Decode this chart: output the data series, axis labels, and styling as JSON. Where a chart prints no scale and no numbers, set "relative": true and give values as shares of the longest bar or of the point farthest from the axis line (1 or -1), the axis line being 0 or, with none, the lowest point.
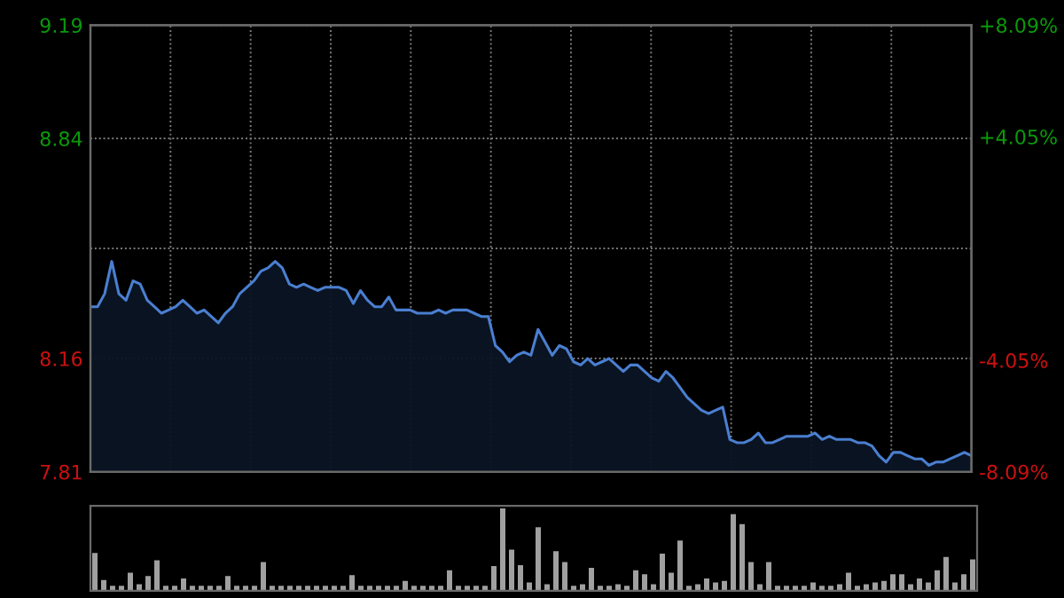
{
  "chart_data": [
    {
      "type": "area",
      "grid": true,
      "tick_labels": "y",
      "categories": [
        null,
        null,
        null,
        null,
        null,
        null,
        null,
        null,
        null,
        null,
        null,
        null,
        null,
        null,
        null,
        null,
        null,
        null,
        null,
        null,
        null,
        null,
        null,
        null,
        null,
        null,
        null,
        null,
        null,
        null,
        null,
        null,
        null,
        null,
        null,
        null,
        null,
        null,
        null,
        null,
        null,
        null,
        null,
        null,
        null,
        null,
        null,
        null,
        null,
        null,
        null,
        null,
        null,
        null,
        null,
        null,
        null,
        null,
        null,
        null,
        null,
        null,
        null,
        null,
        null,
        null,
        null,
        null,
        null,
        null,
        null,
        null,
        null,
        null,
        null,
        null,
        null,
        null,
        null,
        null,
        null,
        null,
        null,
        null,
        null,
        null,
        null,
        null,
        null,
        null,
        null,
        null,
        null,
        null,
        null,
        null,
        null,
        null,
        null,
        null,
        null,
        null,
        null,
        null,
        null,
        null,
        null,
        null,
        null,
        null,
        null,
        null,
        null,
        null,
        null,
        null,
        null,
        null,
        null,
        null,
        null,
        null,
        null,
        null,
        null
      ],
      "ylim": [
        7.81,
        9.19
      ],
      "yticks": [
        7.81,
        8.16,
        {
          "value": 8.5,
          "label": null
        },
        8.84,
        9.19
      ],
      "y2lim": [
        -8.09,
        8.09
      ],
      "y2ticks": [
        {
          "value": -8.09,
          "label": "-8.09%"
        },
        {
          "value": -4.05,
          "label": "-4.05%"
        },
        {
          "value": 0,
          "label": null
        },
        {
          "value": 4.05,
          "label": "+4.05%"
        },
        {
          "value": 8.09,
          "label": "+8.09%"
        }
      ],
      "series": [
        {
          "color": "#4a7fd0",
          "values": [
            8.32,
            8.32,
            8.36,
            8.46,
            8.36,
            8.34,
            8.4,
            8.39,
            8.34,
            8.32,
            8.3,
            8.31,
            8.32,
            8.34,
            8.32,
            8.3,
            8.31,
            8.29,
            8.27,
            8.3,
            8.32,
            8.36,
            8.38,
            8.4,
            8.43,
            8.44,
            8.46,
            8.44,
            8.39,
            8.38,
            8.39,
            8.38,
            8.37,
            8.38,
            8.38,
            8.38,
            8.37,
            8.33,
            8.37,
            8.34,
            8.32,
            8.32,
            8.35,
            8.31,
            8.31,
            8.31,
            8.3,
            8.3,
            8.3,
            8.31,
            8.3,
            8.31,
            8.31,
            8.31,
            8.3,
            8.29,
            8.29,
            8.2,
            8.18,
            8.15,
            8.17,
            8.18,
            8.17,
            8.25,
            8.21,
            8.17,
            8.2,
            8.19,
            8.15,
            8.14,
            8.16,
            8.14,
            8.15,
            8.16,
            8.14,
            8.12,
            8.14,
            8.14,
            8.12,
            8.1,
            8.09,
            8.12,
            8.1,
            8.07,
            8.04,
            8.02,
            8.0,
            7.99,
            8.0,
            8.01,
            7.91,
            7.9,
            7.9,
            7.91,
            7.93,
            7.9,
            7.9,
            7.91,
            7.92,
            7.92,
            7.92,
            7.92,
            7.93,
            7.91,
            7.92,
            7.91,
            7.91,
            7.91,
            7.9,
            7.9,
            7.89,
            7.86,
            7.84,
            7.87,
            7.87,
            7.86,
            7.85,
            7.85,
            7.83,
            7.84,
            7.84,
            7.85,
            7.86,
            7.87,
            7.86
          ]
        }
      ]
    },
    {
      "type": "bar",
      "relative": true,
      "categories": [
        null,
        null,
        null,
        null,
        null,
        null,
        null,
        null,
        null,
        null,
        null,
        null,
        null,
        null,
        null,
        null,
        null,
        null,
        null,
        null,
        null,
        null,
        null,
        null,
        null,
        null,
        null,
        null,
        null,
        null,
        null,
        null,
        null,
        null,
        null,
        null,
        null,
        null,
        null,
        null,
        null,
        null,
        null,
        null,
        null,
        null,
        null,
        null,
        null,
        null,
        null,
        null,
        null,
        null,
        null,
        null,
        null,
        null,
        null,
        null,
        null,
        null,
        null,
        null,
        null,
        null,
        null,
        null,
        null,
        null,
        null,
        null,
        null,
        null,
        null,
        null,
        null,
        null,
        null,
        null,
        null,
        null,
        null,
        null,
        null,
        null,
        null,
        null,
        null,
        null,
        null,
        null,
        null,
        null,
        null,
        null,
        null,
        null,
        null,
        null
      ],
      "series": [
        {
          "color": "#a0a0a0",
          "values": [
            0.46,
            0.13,
            0.06,
            0.06,
            0.22,
            0.08,
            0.18,
            0.37,
            0.06,
            0.06,
            0.15,
            0.06,
            0.06,
            0.06,
            0.06,
            0.18,
            0.06,
            0.06,
            0.06,
            0.35,
            0.06,
            0.06,
            0.06,
            0.06,
            0.06,
            0.06,
            0.06,
            0.06,
            0.06,
            0.19,
            0.06,
            0.06,
            0.06,
            0.06,
            0.06,
            0.12,
            0.06,
            0.06,
            0.06,
            0.06,
            0.25,
            0.06,
            0.06,
            0.06,
            0.06,
            0.3,
            1.0,
            0.5,
            0.31,
            0.1,
            0.77,
            0.08,
            0.48,
            0.35,
            0.06,
            0.08,
            0.28,
            0.06,
            0.06,
            0.08,
            0.06,
            0.25,
            0.2,
            0.08,
            0.45,
            0.22,
            0.61,
            0.06,
            0.08,
            0.15,
            0.1,
            0.12,
            0.93,
            0.81,
            0.35,
            0.08,
            0.35,
            0.06,
            0.06,
            0.06,
            0.06,
            0.1,
            0.06,
            0.06,
            0.08,
            0.22,
            0.06,
            0.08,
            0.1,
            0.12,
            0.2,
            0.2,
            0.08,
            0.15,
            0.1,
            0.25,
            0.41,
            0.1,
            0.2,
            0.38
          ]
        }
      ]
    }
  ]
}
